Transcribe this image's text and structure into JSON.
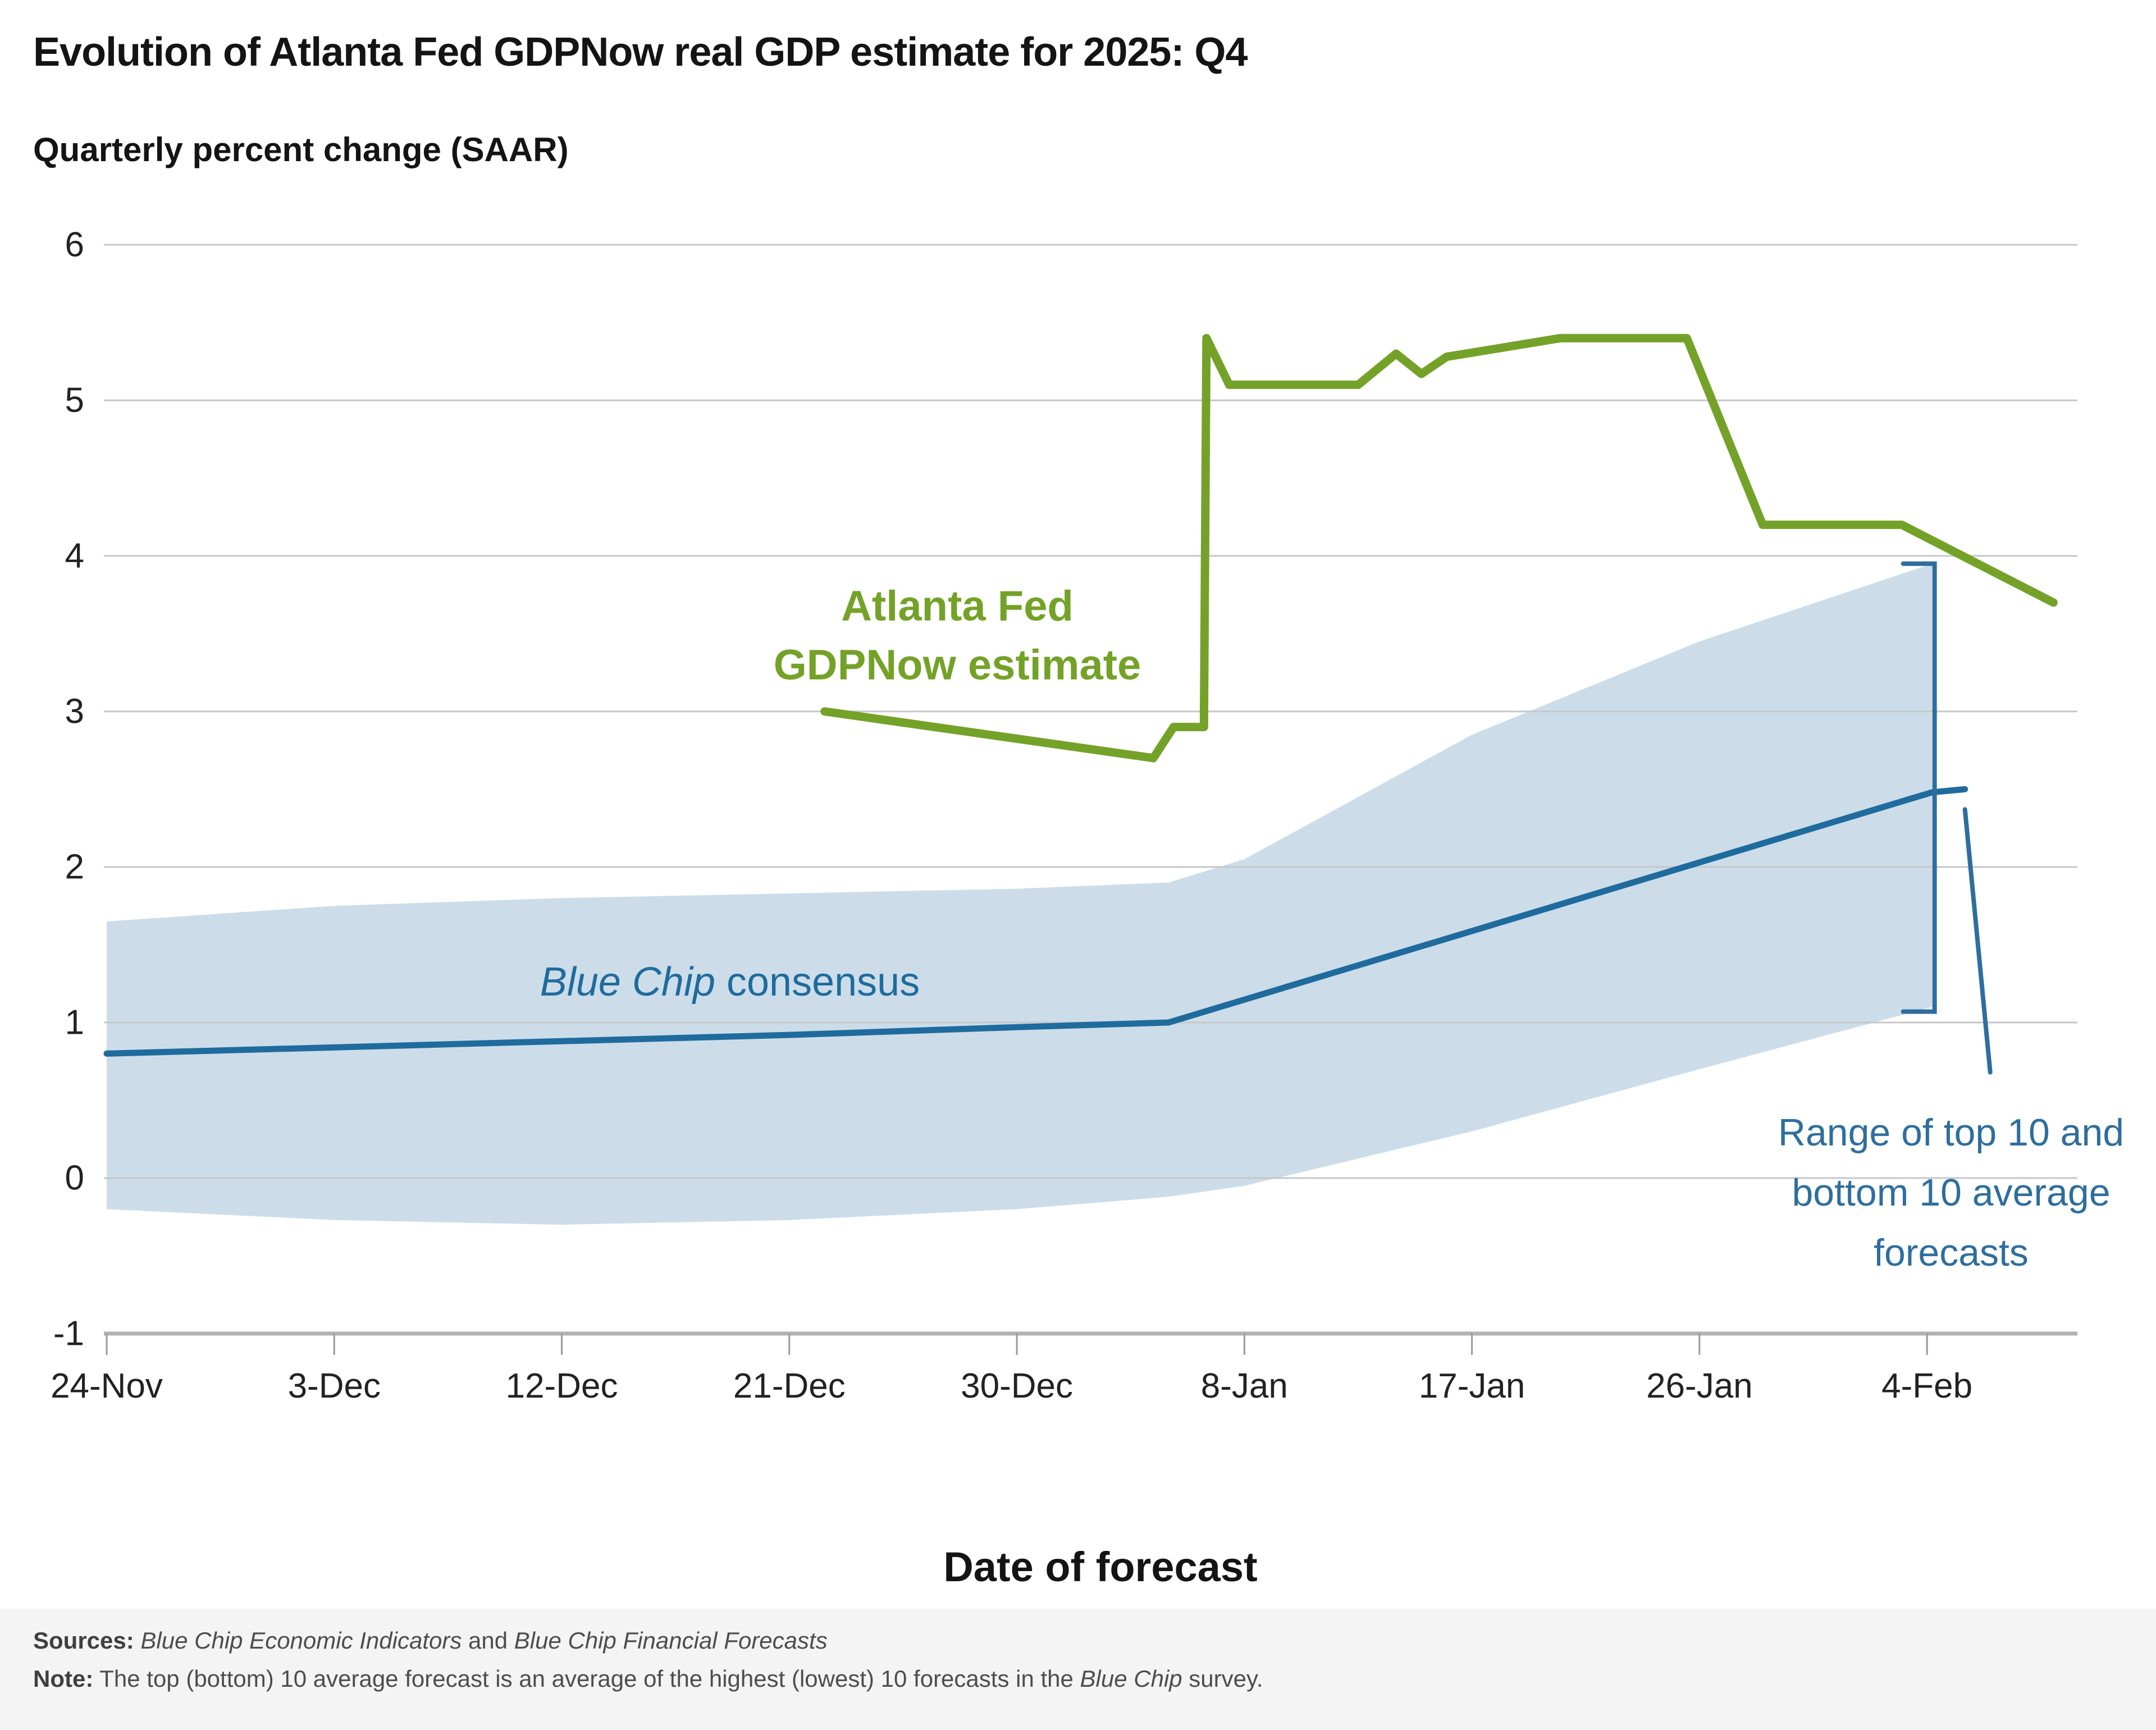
{
  "title": "Evolution of Atlanta Fed GDPNow real GDP estimate for 2025: Q4",
  "subtitle": "Quarterly percent change (SAAR)",
  "x_axis": {
    "label": "Date of forecast",
    "ticks": [
      {
        "label": "24-Nov",
        "day": 0
      },
      {
        "label": "3-Dec",
        "day": 9
      },
      {
        "label": "12-Dec",
        "day": 18
      },
      {
        "label": "21-Dec",
        "day": 27
      },
      {
        "label": "30-Dec",
        "day": 36
      },
      {
        "label": "8-Jan",
        "day": 45
      },
      {
        "label": "17-Jan",
        "day": 54
      },
      {
        "label": "26-Jan",
        "day": 63
      },
      {
        "label": "4-Feb",
        "day": 72
      }
    ]
  },
  "y_axis": {
    "ticks": [
      6,
      5,
      4,
      3,
      2,
      1,
      0,
      -1
    ]
  },
  "annotations": {
    "gdpnow_label": {
      "line1": "Atlanta Fed",
      "line2": "GDPNow estimate"
    },
    "bluechip_label": {
      "italic": "Blue Chip",
      "regular": " consensus"
    },
    "range_label": "Range of top 10 and bottom 10 average forecasts"
  },
  "footer": {
    "sources": {
      "label": "Sources:",
      "space": " ",
      "italic1": "Blue Chip Economic Indicators",
      "and": " and ",
      "italic2": "Blue Chip Financial Forecasts"
    },
    "note": {
      "label": "Note:",
      "pre": " The top (bottom) 10 average forecast is an average of the highest (lowest) 10 forecasts in the ",
      "italic": "Blue Chip",
      "post": " survey."
    }
  },
  "chart_data": {
    "type": "line",
    "title": "Evolution of Atlanta Fed GDPNow real GDP estimate for 2025: Q4",
    "ylabel": "Quarterly percent change (SAAR)",
    "xlabel": "Date of forecast",
    "ylim": [
      -1,
      6
    ],
    "x_unit": "days since 24-Nov",
    "x_domain_days": [
      0,
      78
    ],
    "grid": true,
    "colors": {
      "gdpnow": "#74a228",
      "bluechip": "#1f6b9d",
      "band": "#ccdde9",
      "gridline": "#c5c7c9",
      "axis": "#b0b2b4",
      "annotation_blue": "#2e6e9e"
    },
    "series": [
      {
        "name": "Atlanta Fed GDPNow estimate",
        "color": "#74a228",
        "points": [
          [
            28.4,
            3.0
          ],
          [
            41.4,
            2.7
          ],
          [
            42.2,
            2.9
          ],
          [
            43.4,
            2.9
          ],
          [
            43.5,
            5.4
          ],
          [
            44.4,
            5.1
          ],
          [
            49.5,
            5.1
          ],
          [
            51.0,
            5.3
          ],
          [
            52.0,
            5.17
          ],
          [
            53.0,
            5.28
          ],
          [
            57.5,
            5.4
          ],
          [
            62.5,
            5.4
          ],
          [
            65.5,
            4.2
          ],
          [
            71.0,
            4.2
          ],
          [
            77.0,
            3.7
          ]
        ]
      },
      {
        "name": "Blue Chip consensus",
        "color": "#1f6b9d",
        "points": [
          [
            0,
            0.8
          ],
          [
            9,
            0.84
          ],
          [
            18,
            0.88
          ],
          [
            27,
            0.92
          ],
          [
            36,
            0.97
          ],
          [
            42,
            1.0
          ],
          [
            72.2,
            2.48
          ],
          [
            73.5,
            2.5
          ]
        ]
      }
    ],
    "band": {
      "name": "Range of top 10 and bottom 10 average forecasts",
      "color": "#ccdde9",
      "top": [
        [
          0,
          1.65
        ],
        [
          9,
          1.75
        ],
        [
          18,
          1.8
        ],
        [
          27,
          1.83
        ],
        [
          36,
          1.86
        ],
        [
          42,
          1.9
        ],
        [
          45,
          2.05
        ],
        [
          54,
          2.85
        ],
        [
          63,
          3.45
        ],
        [
          72.2,
          3.95
        ]
      ],
      "bottom": [
        [
          0,
          -0.2
        ],
        [
          9,
          -0.27
        ],
        [
          18,
          -0.3
        ],
        [
          27,
          -0.27
        ],
        [
          36,
          -0.2
        ],
        [
          42,
          -0.12
        ],
        [
          45,
          -0.05
        ],
        [
          54,
          0.3
        ],
        [
          63,
          0.7
        ],
        [
          72.2,
          1.1
        ]
      ]
    }
  }
}
